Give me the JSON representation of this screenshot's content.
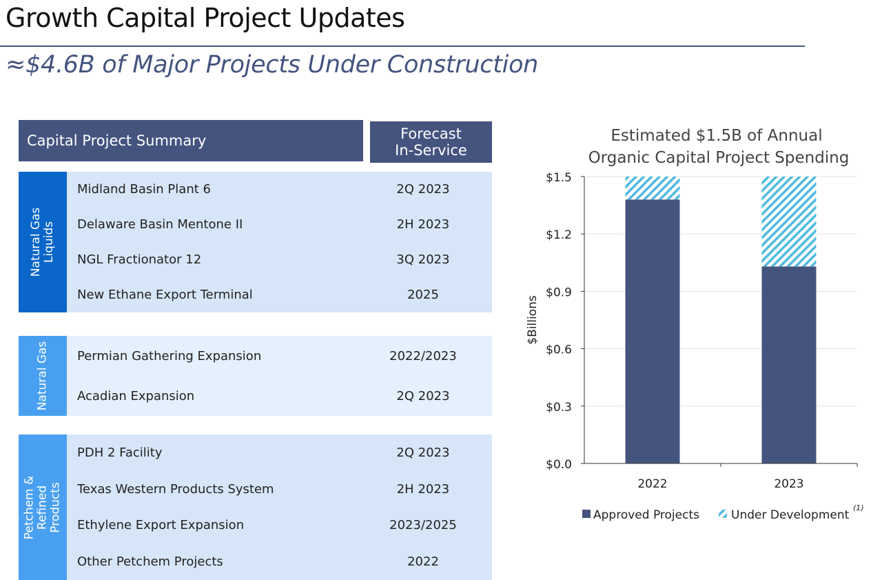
{
  "header": {
    "title": "Growth Capital Project Updates",
    "subtitle": "≈$4.6B of Major Projects Under Construction"
  },
  "table": {
    "col1": "Capital Project Summary",
    "col2_line1": "Forecast",
    "col2_line2": "In-Service",
    "groups": [
      {
        "label_l1": "Natural Gas",
        "label_l2": "Liquids",
        "color": "#0a66c8",
        "bg": "#d6e6f8",
        "rows": [
          {
            "name": "Midland Basin Plant 6",
            "date": "2Q 2023"
          },
          {
            "name": "Delaware Basin Mentone II",
            "date": "2H 2023"
          },
          {
            "name": "NGL Fractionator 12",
            "date": "3Q 2023"
          },
          {
            "name": "New Ethane Export Terminal",
            "date": "2025"
          }
        ]
      },
      {
        "label_l1": "Natural Gas",
        "color": "#4aa0f0",
        "bg": "#e4f0fc",
        "rows": [
          {
            "name": "Permian Gathering Expansion",
            "date": "2022/2023"
          },
          {
            "name": "Acadian Expansion",
            "date": "2Q 2023"
          }
        ]
      },
      {
        "label_l1": "Petchem &",
        "label_l2": "Refined",
        "label_l3": "Products",
        "color": "#4aa0f0",
        "bg": "#d6e6f8",
        "rows": [
          {
            "name": "PDH 2 Facility",
            "date": "2Q 2023"
          },
          {
            "name": "Texas Western Products System",
            "date": "2H 2023"
          },
          {
            "name": "Ethylene Export Expansion",
            "date": "2023/2025"
          },
          {
            "name": "Other Petchem Projects",
            "date": "2022"
          }
        ]
      }
    ]
  },
  "chart_data": {
    "type": "bar",
    "stacked": true,
    "title_l1": "Estimated $1.5B of Annual",
    "title_l2": "Organic Capital Project Spending",
    "ylabel": "$Billions",
    "ylim": [
      0,
      1.5
    ],
    "yticks": [
      "$0.0",
      "$0.3",
      "$0.6",
      "$0.9",
      "$1.2",
      "$1.5"
    ],
    "categories": [
      "2022",
      "2023"
    ],
    "series": [
      {
        "name": "Approved Projects",
        "values": [
          1.38,
          1.03
        ],
        "color": "#44547f"
      },
      {
        "name": "Under Development",
        "values": [
          0.12,
          0.47
        ],
        "color": "#4fb8e0"
      }
    ],
    "legend_note": "(1)",
    "legend": "bottom",
    "grid": true
  }
}
